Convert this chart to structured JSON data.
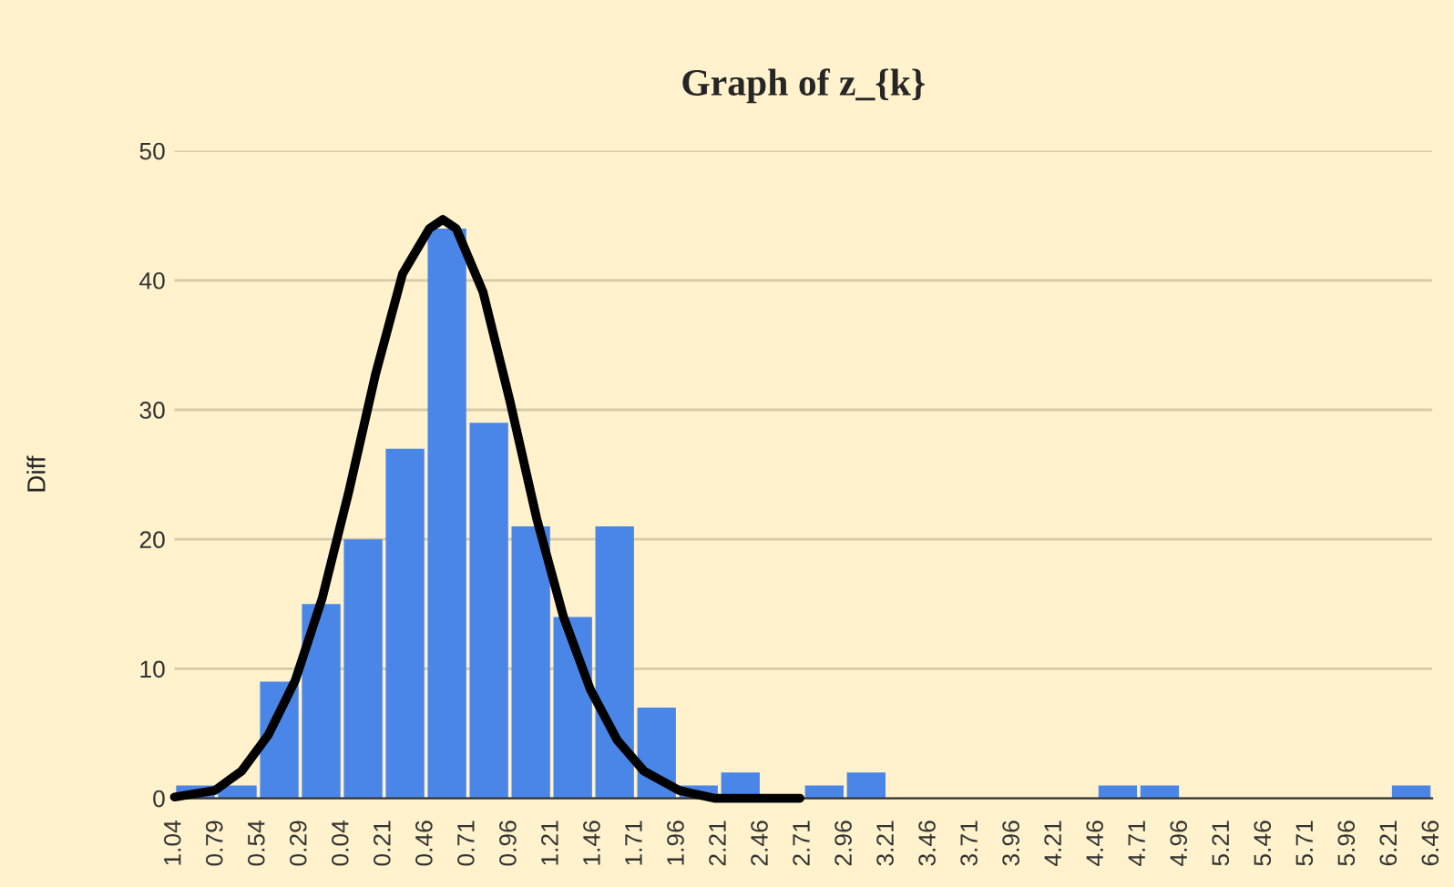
{
  "chart_data": {
    "type": "histogram",
    "title": "Graph of z_{k}",
    "ylabel": "Diff",
    "bins": [
      -1.04,
      -0.79,
      -0.54,
      -0.29,
      -0.04,
      0.21,
      0.46,
      0.71,
      0.96,
      1.21,
      1.46,
      1.71,
      1.96,
      2.21,
      2.46,
      2.71,
      2.96,
      3.21,
      3.46,
      3.71,
      3.96,
      4.21,
      4.46,
      4.71,
      4.96,
      5.21,
      5.46,
      5.71,
      5.96,
      6.21,
      6.46
    ],
    "values": [
      1,
      1,
      9,
      15,
      20,
      27,
      44,
      29,
      21,
      14,
      21,
      7,
      1,
      2,
      0,
      1,
      2,
      0,
      0,
      0,
      0,
      0,
      1,
      1,
      0,
      0,
      0,
      0,
      0,
      1
    ],
    "color": "#4a86e8",
    "series": [
      {
        "type": "line",
        "color": "#000000",
        "x": [
          -1.04,
          -0.8,
          -0.64,
          -0.48,
          -0.32,
          -0.16,
          0.0,
          0.16,
          0.32,
          0.48,
          0.56,
          0.64,
          0.8,
          0.96,
          1.12,
          1.28,
          1.44,
          1.6,
          1.76,
          1.97,
          2.18,
          2.69
        ],
        "values": [
          0.1,
          0.6,
          2.1,
          4.9,
          9.1,
          15.4,
          23.7,
          32.8,
          40.5,
          44,
          44.7,
          44,
          39.1,
          30.7,
          21.6,
          14,
          8.4,
          4.5,
          2.1,
          0.6,
          0,
          0
        ]
      }
    ],
    "xlim": [
      -1.04,
      6.46
    ],
    "xticks": [
      {
        "value": -1.04,
        "label": "1.04"
      },
      {
        "value": -0.79,
        "label": "0.79"
      },
      {
        "value": -0.54,
        "label": "0.54"
      },
      {
        "value": -0.29,
        "label": "0.29"
      },
      {
        "value": -0.04,
        "label": "0.04"
      },
      0.21,
      0.46,
      0.71,
      0.96,
      1.21,
      1.46,
      1.71,
      1.96,
      2.21,
      2.46,
      2.71,
      2.96,
      3.21,
      3.46,
      3.71,
      3.96,
      4.21,
      4.46,
      4.71,
      4.96,
      5.21,
      5.46,
      5.71,
      5.96,
      6.21,
      6.46
    ],
    "ylim": [
      0,
      50
    ],
    "yticks": [
      0,
      10,
      20,
      30,
      40,
      50
    ],
    "grid": "y"
  }
}
